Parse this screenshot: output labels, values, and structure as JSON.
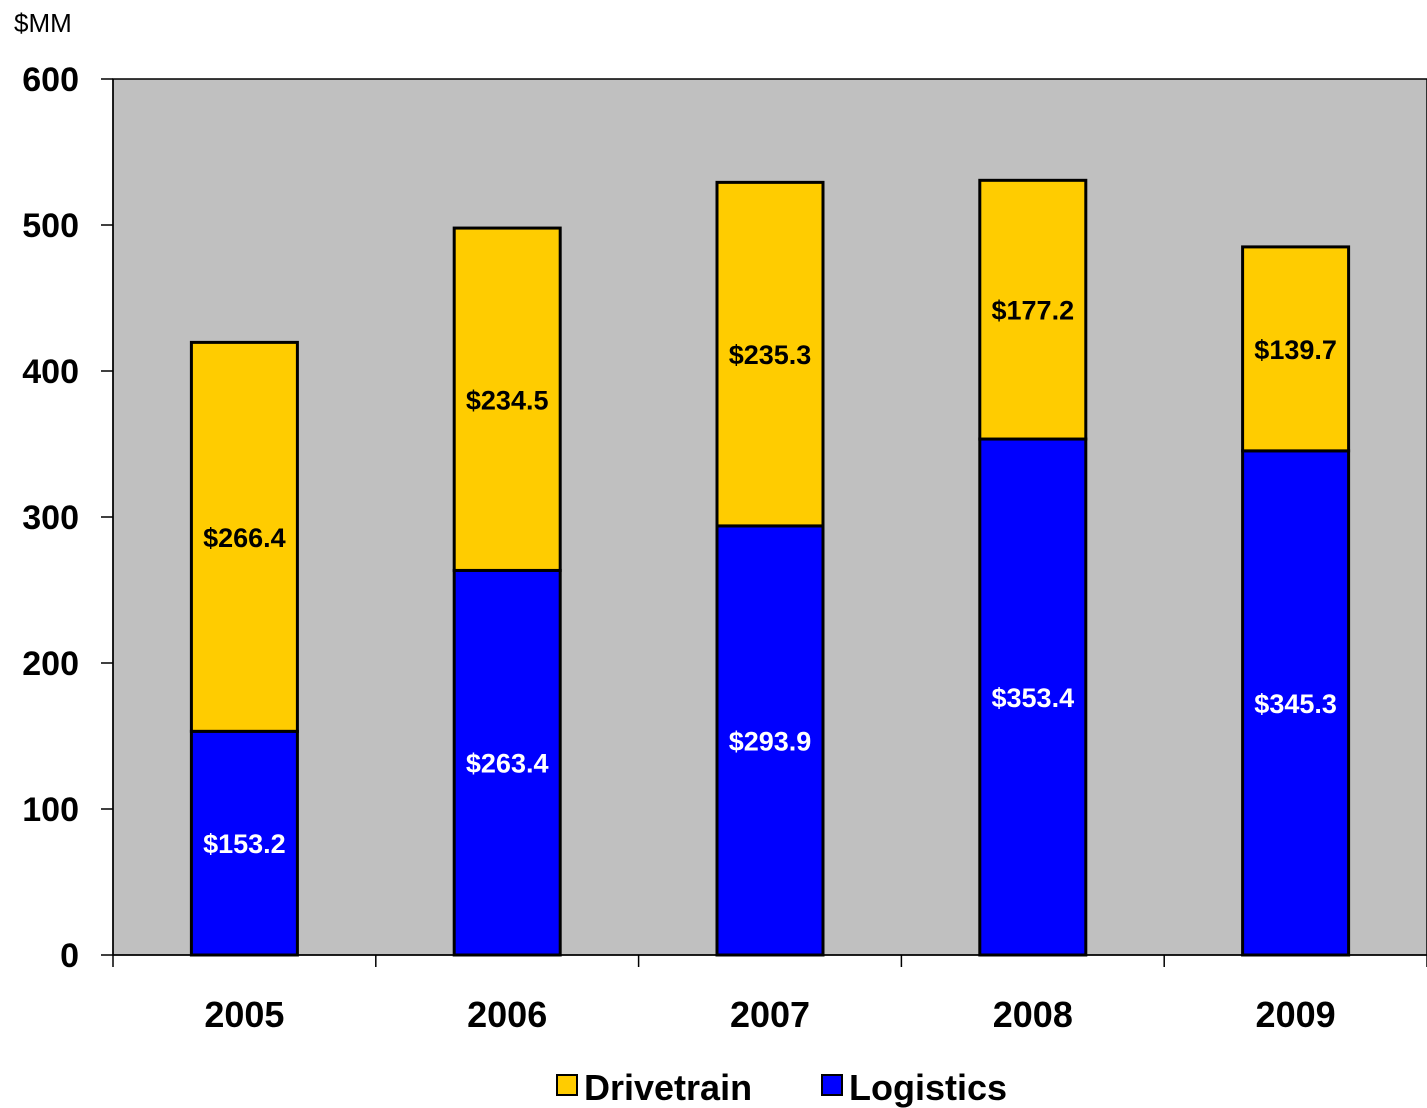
{
  "chart_data": {
    "type": "bar",
    "stacked": true,
    "unit_label": "$MM",
    "title": "",
    "xlabel": "",
    "ylabel": "",
    "categories": [
      "2005",
      "2006",
      "2007",
      "2008",
      "2009"
    ],
    "ylim": [
      0,
      600
    ],
    "yticks": [
      0,
      100,
      200,
      300,
      400,
      500,
      600
    ],
    "grid": false,
    "plot_background": "#C0C0C0",
    "legend_position": "bottom",
    "series": [
      {
        "name": "Logistics",
        "color": "#0000FF",
        "label_color": "#FFFFFF",
        "values": [
          153.2,
          263.4,
          293.9,
          353.4,
          345.3
        ],
        "labels": [
          "$153.2",
          "$263.4",
          "$293.9",
          "$353.4",
          "$345.3"
        ]
      },
      {
        "name": "Drivetrain",
        "color": "#FFCC00",
        "label_color": "#000000",
        "values": [
          266.4,
          234.5,
          235.3,
          177.2,
          139.7
        ],
        "labels": [
          "$266.4",
          "$234.5",
          "$235.3",
          "$177.2",
          "$139.7"
        ]
      }
    ],
    "legend_order": [
      "Drivetrain",
      "Logistics"
    ]
  }
}
